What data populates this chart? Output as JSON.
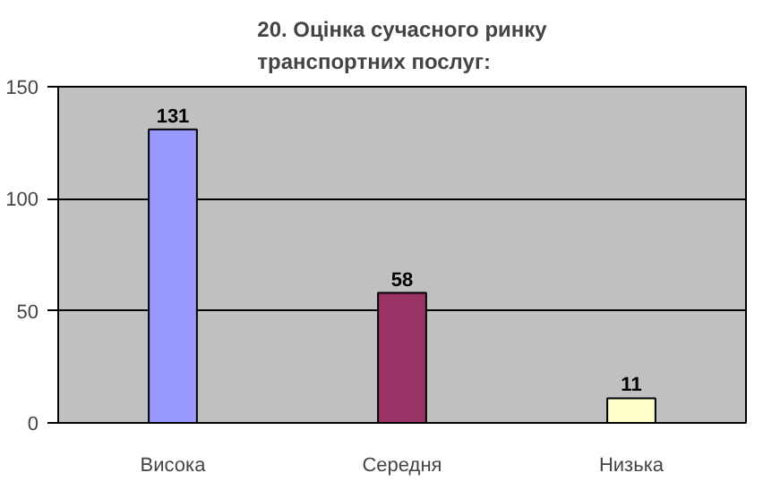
{
  "chart_data": {
    "type": "bar",
    "title": "20. Оцінка сучасного ринку транспортних послуг:",
    "categories": [
      "Висока",
      "Середня",
      "Низька"
    ],
    "values": [
      131,
      58,
      11
    ],
    "colors": [
      "#9999ff",
      "#993366",
      "#ffffcc"
    ],
    "ylim": [
      0,
      150
    ],
    "yticks": [
      0,
      50,
      100,
      150
    ],
    "grid": "y",
    "data_labels": true
  }
}
